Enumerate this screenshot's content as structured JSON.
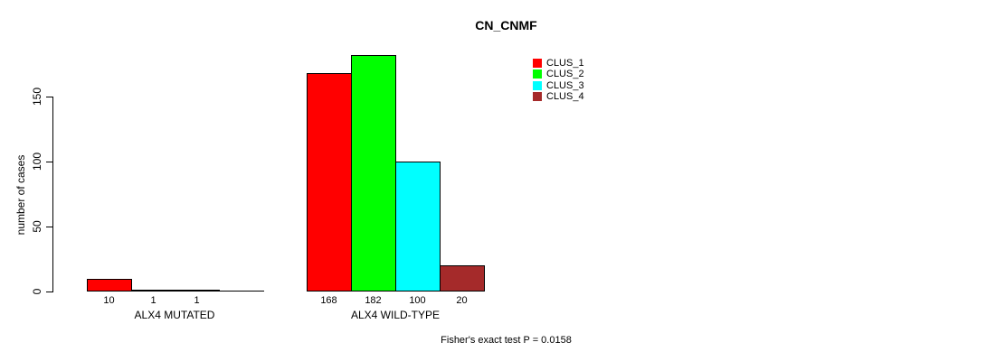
{
  "title": "CN_CNMF",
  "chart_data": {
    "type": "bar",
    "title": "CN_CNMF",
    "ylabel": "number of cases",
    "xlabel": "",
    "ylim": [
      0,
      150
    ],
    "yticks": [
      0,
      50,
      100,
      150
    ],
    "grid": false,
    "legend_position": "top-right",
    "categories": [
      "ALX4 MUTATED",
      "ALX4 WILD-TYPE"
    ],
    "series": [
      {
        "name": "CLUS_1",
        "color": "#ff0000",
        "values": [
          10,
          168
        ]
      },
      {
        "name": "CLUS_2",
        "color": "#00ff00",
        "values": [
          1,
          182
        ]
      },
      {
        "name": "CLUS_3",
        "color": "#00ffff",
        "values": [
          1,
          100
        ]
      },
      {
        "name": "CLUS_4",
        "color": "#a52a2a",
        "values": [
          0,
          20
        ]
      }
    ],
    "bar_value_labels": [
      [
        "10",
        "1",
        "1",
        ""
      ],
      [
        "168",
        "182",
        "100",
        "20"
      ]
    ],
    "annotation": "Fisher's exact test P = 0.0158"
  }
}
